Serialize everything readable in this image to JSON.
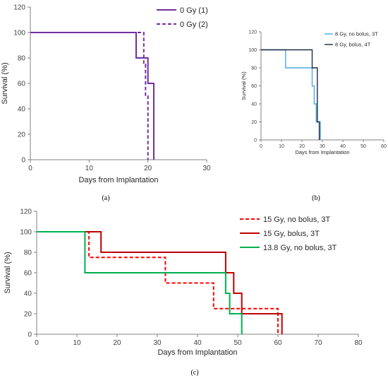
{
  "panel_labels": [
    "(a)",
    "(b)",
    "(c)"
  ],
  "chart_data": [
    {
      "type": "line",
      "step": true,
      "xlabel": "Days from Implantation",
      "ylabel": "Survival (%)",
      "xlim": [
        0,
        30
      ],
      "ylim": [
        0,
        120
      ],
      "xticks": [
        0,
        10,
        20,
        30
      ],
      "yticks": [
        0,
        20,
        40,
        60,
        80,
        100,
        120
      ],
      "grid": false,
      "legend_position": "top-right",
      "series": [
        {
          "name": "0 Gy (1)",
          "color": "#7030a0",
          "dash": "solid",
          "x": [
            0,
            18,
            18,
            20,
            20,
            20.5,
            20.5,
            21,
            21
          ],
          "y": [
            100,
            100,
            80,
            80,
            60,
            60,
            60,
            60,
            0
          ]
        },
        {
          "name": "0 Gy (2)",
          "color": "#7030a0",
          "dash": "dashed",
          "x": [
            0,
            19,
            19,
            19.3,
            19.3,
            19.6,
            19.6,
            20,
            20
          ],
          "y": [
            100,
            100,
            100,
            100,
            75,
            75,
            50,
            50,
            0
          ]
        }
      ]
    },
    {
      "type": "line",
      "step": true,
      "xlabel": "Days from Implantation",
      "ylabel": "Survival (%)",
      "xlim": [
        0,
        60
      ],
      "ylim": [
        0,
        120
      ],
      "xticks": [
        0,
        10,
        20,
        30,
        40,
        50,
        60
      ],
      "yticks": [
        0,
        20,
        40,
        60,
        80,
        100,
        120
      ],
      "grid": false,
      "legend_position": "top-right",
      "series": [
        {
          "name": "8 Gy, no bolus, 3T",
          "color": "#4bacdf",
          "dash": "solid",
          "x": [
            0,
            12,
            12,
            25,
            25,
            26,
            26,
            27,
            27,
            28,
            28,
            29,
            29
          ],
          "y": [
            100,
            100,
            80,
            80,
            60,
            60,
            40,
            40,
            20,
            20,
            20,
            20,
            0
          ]
        },
        {
          "name": "8 Gy, bolus, 4T",
          "color": "#1f2a44",
          "dash": "solid",
          "x": [
            0,
            25,
            25,
            27.5,
            27.5,
            28.5,
            28.5
          ],
          "y": [
            100,
            100,
            80,
            80,
            20,
            20,
            0
          ]
        }
      ]
    },
    {
      "type": "line",
      "step": true,
      "xlabel": "Days from Implantation",
      "ylabel": "Survival (%)",
      "xlim": [
        0,
        80
      ],
      "ylim": [
        0,
        120
      ],
      "xticks": [
        0,
        10,
        20,
        30,
        40,
        50,
        60,
        70,
        80
      ],
      "yticks": [
        0,
        20,
        40,
        60,
        80,
        100,
        120
      ],
      "grid": false,
      "legend_position": "top-right",
      "series": [
        {
          "name": "15 Gy, no bolus, 3T",
          "color": "#ff0000",
          "dash": "dashed",
          "x": [
            0,
            13,
            13,
            32,
            32,
            44,
            44,
            60,
            60
          ],
          "y": [
            100,
            100,
            75,
            75,
            50,
            50,
            25,
            25,
            0
          ]
        },
        {
          "name": "15 Gy, bolus, 3T",
          "color": "#c00000",
          "dash": "solid",
          "x": [
            0,
            16,
            16,
            47,
            47,
            49,
            49,
            51,
            51,
            61,
            61
          ],
          "y": [
            100,
            100,
            80,
            80,
            60,
            60,
            40,
            40,
            20,
            20,
            0
          ]
        },
        {
          "name": "13.8 Gy, no bolus, 3T",
          "color": "#00b050",
          "dash": "solid",
          "x": [
            0,
            12,
            12,
            47,
            47,
            48,
            48,
            51,
            51
          ],
          "y": [
            100,
            100,
            60,
            60,
            40,
            40,
            20,
            20,
            0
          ]
        }
      ]
    }
  ]
}
